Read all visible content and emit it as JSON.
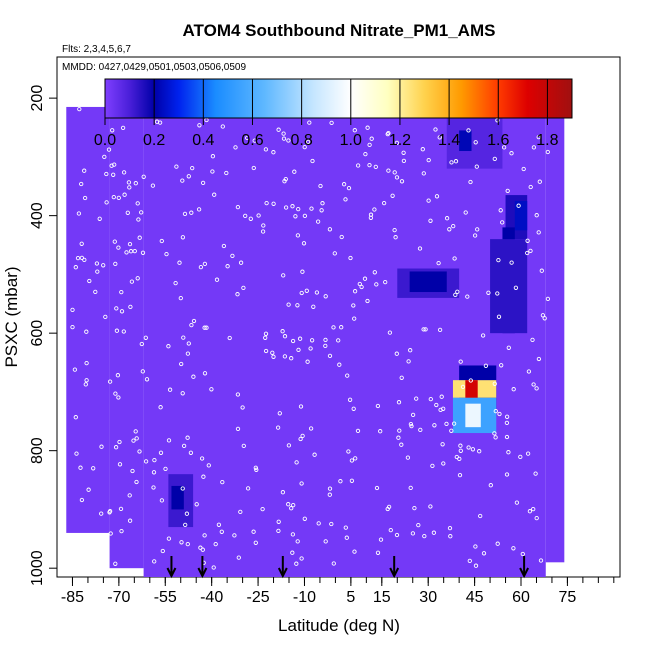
{
  "chart_data": {
    "type": "heatmap",
    "title": "ATOM4 Southbound Nitrate_PM1_AMS",
    "flights_note": "Flts: 2,3,4,5,6,7",
    "dates_note": "MMDD: 0427,0429,0501,0503,0506,0509",
    "xlabel": "Latitude (deg N)",
    "ylabel": "PSXC (mbar)",
    "xlim": [
      -90,
      92
    ],
    "ylim": [
      1015,
      130
    ],
    "x_ticks": [
      -85,
      -70,
      -55,
      -40,
      -25,
      -10,
      5,
      15,
      30,
      45,
      60,
      75
    ],
    "y_ticks": [
      200,
      400,
      600,
      800,
      1000
    ],
    "colorbar": {
      "range": [
        0,
        1.9
      ],
      "ticks": [
        "0.0",
        "0.2",
        "0.4",
        "0.6",
        "0.8",
        "1.0",
        "1.2",
        "1.4",
        "1.6",
        "1.8"
      ],
      "stops": [
        {
          "v": 0.0,
          "c": "#7f3fff"
        },
        {
          "v": 0.1,
          "c": "#4a1fd9"
        },
        {
          "v": 0.2,
          "c": "#0000a8"
        },
        {
          "v": 0.3,
          "c": "#0022ee"
        },
        {
          "v": 0.45,
          "c": "#1a8cff"
        },
        {
          "v": 0.65,
          "c": "#5fb8ff"
        },
        {
          "v": 0.85,
          "c": "#c6e6ff"
        },
        {
          "v": 1.0,
          "c": "#ffffff"
        },
        {
          "v": 1.15,
          "c": "#ffffc0"
        },
        {
          "v": 1.3,
          "c": "#ffd24d"
        },
        {
          "v": 1.45,
          "c": "#ff9a00"
        },
        {
          "v": 1.6,
          "c": "#ff3a00"
        },
        {
          "v": 1.72,
          "c": "#dd0000"
        },
        {
          "v": 1.9,
          "c": "#a01010"
        }
      ]
    },
    "background_value": 0.02,
    "coverage": [
      {
        "lat_min": -87,
        "lat_max": -73,
        "p_min": 215,
        "p_max": 940
      },
      {
        "lat_min": -73,
        "lat_max": -62,
        "p_min": 215,
        "p_max": 1000
      },
      {
        "lat_min": -62,
        "lat_max": 68,
        "p_min": 170,
        "p_max": 1015
      },
      {
        "lat_min": 68,
        "lat_max": 74,
        "p_min": 210,
        "p_max": 990
      }
    ],
    "features": [
      {
        "lat_min": 36,
        "lat_max": 54,
        "p_min": 205,
        "p_max": 320,
        "value": 0.08
      },
      {
        "lat_min": 40,
        "lat_max": 44,
        "p_min": 255,
        "p_max": 290,
        "value": 0.22
      },
      {
        "lat_min": 55,
        "lat_max": 62,
        "p_min": 365,
        "p_max": 440,
        "value": 0.16
      },
      {
        "lat_min": 58,
        "lat_max": 62,
        "p_min": 375,
        "p_max": 425,
        "value": 0.24
      },
      {
        "lat_min": 54,
        "lat_max": 58,
        "p_min": 420,
        "p_max": 600,
        "value": 0.2
      },
      {
        "lat_min": 50,
        "lat_max": 62,
        "p_min": 440,
        "p_max": 600,
        "value": 0.14
      },
      {
        "lat_min": 20,
        "lat_max": 40,
        "p_min": 490,
        "p_max": 540,
        "value": 0.12
      },
      {
        "lat_min": 24,
        "lat_max": 36,
        "p_min": 495,
        "p_max": 530,
        "value": 0.2
      },
      {
        "lat_min": 40,
        "lat_max": 52,
        "p_min": 655,
        "p_max": 730,
        "value": 0.2
      },
      {
        "lat_min": 38,
        "lat_max": 52,
        "p_min": 680,
        "p_max": 710,
        "value": 1.25
      },
      {
        "lat_min": 42,
        "lat_max": 46,
        "p_min": 680,
        "p_max": 710,
        "value": 1.75
      },
      {
        "lat_min": 38,
        "lat_max": 52,
        "p_min": 710,
        "p_max": 770,
        "value": 0.55
      },
      {
        "lat_min": 42,
        "lat_max": 47,
        "p_min": 720,
        "p_max": 760,
        "value": 0.95
      },
      {
        "lat_min": -54,
        "lat_max": -46,
        "p_min": 840,
        "p_max": 930,
        "value": 0.12
      },
      {
        "lat_min": -53,
        "lat_max": -49,
        "p_min": 860,
        "p_max": 900,
        "value": 0.2
      }
    ],
    "descent_arrows_lat": [
      -53,
      -43,
      -17,
      19,
      61
    ]
  }
}
